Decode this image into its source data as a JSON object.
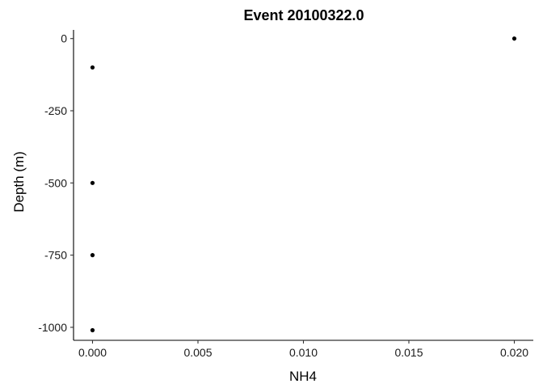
{
  "chart_data": {
    "type": "scatter",
    "title": "Event 20100322.0",
    "xlabel": "NH4",
    "ylabel": "Depth (m)",
    "xlim": [
      -0.0009,
      0.0209
    ],
    "ylim": [
      -1045,
      30
    ],
    "x_ticks": [
      0.0,
      0.005,
      0.01,
      0.015,
      0.02
    ],
    "x_tick_labels": [
      "0.000",
      "0.005",
      "0.010",
      "0.015",
      "0.020"
    ],
    "y_ticks": [
      0,
      -250,
      -500,
      -750,
      -1000
    ],
    "y_tick_labels": [
      "0",
      "-250",
      "-500",
      "-750",
      "-1000"
    ],
    "grid": false,
    "legend": "none",
    "series": [
      {
        "points": [
          {
            "x": 0.02,
            "y": 0
          },
          {
            "x": 0.0,
            "y": -100
          },
          {
            "x": 0.0,
            "y": -500
          },
          {
            "x": 0.0,
            "y": -750
          },
          {
            "x": 0.0,
            "y": -1010
          }
        ]
      }
    ]
  }
}
